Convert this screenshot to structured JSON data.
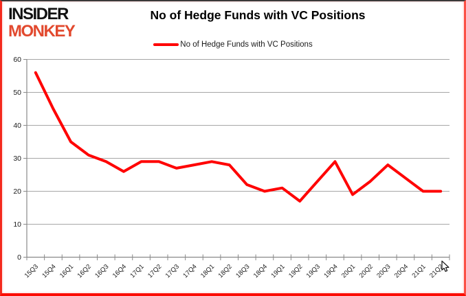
{
  "logo": {
    "line1": "INSIDER",
    "line2": "MONKEY"
  },
  "header": {
    "title": "No of Hedge Funds with VC Positions"
  },
  "legend": {
    "label": "No of Hedge Funds with VC Positions",
    "line_color": "#ff0000"
  },
  "chart_data": {
    "type": "line",
    "title": "No of Hedge Funds with VC Positions",
    "categories": [
      "15Q3",
      "15Q4",
      "16Q1",
      "16Q2",
      "16Q3",
      "16Q4",
      "17Q1",
      "17Q2",
      "17Q3",
      "17Q4",
      "18Q1",
      "18Q2",
      "18Q3",
      "18Q4",
      "19Q1",
      "19Q2",
      "19Q3",
      "19Q4",
      "20Q1",
      "20Q2",
      "20Q3",
      "20Q4",
      "21Q1",
      "21Q2"
    ],
    "series": [
      {
        "name": "No of Hedge Funds with VC Positions",
        "color": "#ff0000",
        "values": [
          56,
          45,
          35,
          31,
          29,
          26,
          29,
          29,
          27,
          28,
          29,
          28,
          22,
          20,
          21,
          17,
          23,
          29,
          19,
          23,
          28,
          24,
          20,
          20
        ]
      }
    ],
    "xlabel": "",
    "ylabel": "",
    "ylim": [
      0,
      60
    ],
    "yticks": [
      0,
      10,
      20,
      30,
      40,
      50,
      60
    ],
    "grid": "horizontal",
    "legend_position": "top",
    "colors": {
      "gridline": "#a6a6a6",
      "axis": "#898989",
      "tick_label": "#1a1a1a"
    }
  }
}
